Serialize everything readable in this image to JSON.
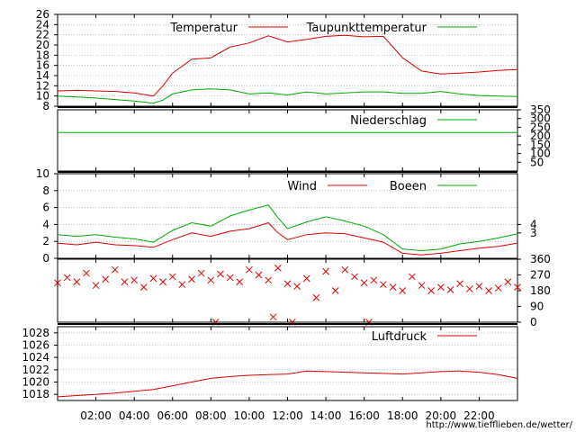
{
  "colors": {
    "red": "#dd0000",
    "green": "#00aa00",
    "grid": "#999999",
    "frame": "#000000"
  },
  "x_labels": [
    "02:00",
    "04:00",
    "06:00",
    "08:00",
    "10:00",
    "12:00",
    "14:00",
    "16:00",
    "18:00",
    "20:00",
    "22:00"
  ],
  "url": "http://www.tiefflieben.de/wetter/",
  "chart_data": [
    {
      "type": "line",
      "x": [
        "00:00",
        "01:00",
        "02:00",
        "03:00",
        "04:00",
        "05:00",
        "05:30",
        "06:00",
        "07:00",
        "08:00",
        "09:00",
        "10:00",
        "11:00",
        "12:00",
        "13:00",
        "14:00",
        "15:00",
        "16:00",
        "17:00",
        "18:00",
        "19:00",
        "20:00",
        "21:00",
        "22:00",
        "23:00",
        "24:00"
      ],
      "series": [
        {
          "name": "Temperatur",
          "color": "#dd0000",
          "values": [
            11.0,
            11.1,
            11.0,
            10.9,
            10.6,
            10.0,
            12.0,
            14.5,
            17.2,
            17.5,
            19.6,
            20.4,
            21.8,
            20.6,
            21.1,
            21.7,
            21.9,
            21.6,
            21.7,
            17.5,
            14.9,
            14.3,
            14.5,
            14.7,
            15.0,
            15.2
          ]
        },
        {
          "name": "Taupunkttemperatur",
          "color": "#00aa00",
          "values": [
            10.0,
            9.8,
            9.6,
            9.3,
            9.0,
            8.6,
            9.2,
            10.4,
            11.2,
            11.4,
            11.2,
            10.4,
            10.6,
            10.2,
            10.8,
            10.4,
            10.6,
            10.8,
            10.8,
            10.5,
            10.5,
            10.9,
            10.4,
            10.1,
            10.0,
            9.9
          ]
        }
      ],
      "yticks": [
        8,
        10,
        12,
        14,
        16,
        18,
        20,
        22,
        24,
        26
      ],
      "ylim": [
        8,
        26
      ]
    },
    {
      "type": "line",
      "x": [
        "00:00",
        "24:00"
      ],
      "series": [
        {
          "name": "Niederschlag",
          "color": "#00aa00",
          "values": [
            220,
            220
          ]
        }
      ],
      "yticks_right": [
        50,
        100,
        150,
        200,
        250,
        300,
        350
      ],
      "ylim": [
        0,
        350
      ]
    },
    {
      "type": "line",
      "x": [
        "00:00",
        "01:00",
        "02:00",
        "03:00",
        "04:00",
        "05:00",
        "06:00",
        "07:00",
        "08:00",
        "09:00",
        "10:00",
        "11:00",
        "11:30",
        "12:00",
        "13:00",
        "14:00",
        "15:00",
        "16:00",
        "17:00",
        "18:00",
        "19:00",
        "20:00",
        "21:00",
        "22:00",
        "23:00",
        "24:00"
      ],
      "series": [
        {
          "name": "Wind",
          "color": "#dd0000",
          "values": [
            1.8,
            1.6,
            1.9,
            1.6,
            1.5,
            1.3,
            2.2,
            3.0,
            2.6,
            3.2,
            3.5,
            4.2,
            3.0,
            2.2,
            2.8,
            3.0,
            2.9,
            2.4,
            1.9,
            0.6,
            0.4,
            0.6,
            0.9,
            1.2,
            1.4,
            1.8
          ]
        },
        {
          "name": "Boeen",
          "color": "#00aa00",
          "values": [
            2.8,
            2.6,
            2.8,
            2.5,
            2.3,
            1.9,
            3.3,
            4.2,
            3.8,
            5.0,
            5.7,
            6.3,
            4.8,
            3.5,
            4.3,
            4.9,
            4.4,
            3.8,
            2.8,
            1.1,
            0.9,
            1.1,
            1.7,
            2.0,
            2.4,
            2.9
          ]
        }
      ],
      "yticks": [
        0,
        2,
        4,
        6,
        8,
        10
      ],
      "yticks_right": [
        3,
        4
      ],
      "ylim": [
        0,
        10
      ]
    },
    {
      "type": "scatter",
      "x": [
        "00:00",
        "00:30",
        "01:00",
        "01:30",
        "02:00",
        "02:30",
        "03:00",
        "03:30",
        "04:00",
        "04:30",
        "05:00",
        "05:30",
        "06:00",
        "06:30",
        "07:00",
        "07:30",
        "08:00",
        "08:15",
        "08:30",
        "09:00",
        "09:30",
        "10:00",
        "10:30",
        "11:00",
        "11:15",
        "11:30",
        "12:00",
        "12:15",
        "12:30",
        "13:00",
        "13:30",
        "14:00",
        "14:30",
        "15:00",
        "15:30",
        "16:00",
        "16:15",
        "16:30",
        "17:00",
        "17:30",
        "18:00",
        "18:30",
        "19:00",
        "19:30",
        "20:00",
        "20:30",
        "21:00",
        "21:30",
        "22:00",
        "22:30",
        "23:00",
        "23:30",
        "24:00"
      ],
      "series": [
        {
          "name": "",
          "color": "#dd0000",
          "values": [
            225,
            255,
            230,
            280,
            210,
            245,
            300,
            230,
            240,
            200,
            250,
            230,
            260,
            215,
            245,
            280,
            240,
            0,
            275,
            255,
            230,
            300,
            270,
            240,
            30,
            310,
            220,
            0,
            205,
            250,
            140,
            290,
            180,
            300,
            260,
            225,
            0,
            240,
            215,
            200,
            180,
            260,
            210,
            180,
            200,
            185,
            220,
            190,
            205,
            180,
            195,
            230,
            200
          ]
        }
      ],
      "yticks_right": [
        0,
        90,
        180,
        270,
        360
      ],
      "ylim": [
        0,
        360
      ]
    },
    {
      "type": "line",
      "x": [
        "00:00",
        "01:00",
        "02:00",
        "03:00",
        "04:00",
        "05:00",
        "06:00",
        "07:00",
        "08:00",
        "09:00",
        "10:00",
        "11:00",
        "12:00",
        "13:00",
        "14:00",
        "15:00",
        "16:00",
        "17:00",
        "18:00",
        "19:00",
        "20:00",
        "21:00",
        "22:00",
        "23:00",
        "24:00"
      ],
      "series": [
        {
          "name": "Luftdruck",
          "color": "#dd0000",
          "values": [
            1017.6,
            1017.8,
            1018.0,
            1018.2,
            1018.5,
            1018.8,
            1019.4,
            1020.0,
            1020.6,
            1020.9,
            1021.1,
            1021.2,
            1021.3,
            1021.8,
            1021.7,
            1021.6,
            1021.5,
            1021.4,
            1021.3,
            1021.5,
            1021.7,
            1021.8,
            1021.6,
            1021.2,
            1020.6
          ]
        }
      ],
      "yticks": [
        1018,
        1020,
        1022,
        1024,
        1026,
        1028
      ],
      "ylim": [
        1017,
        1029
      ]
    }
  ]
}
